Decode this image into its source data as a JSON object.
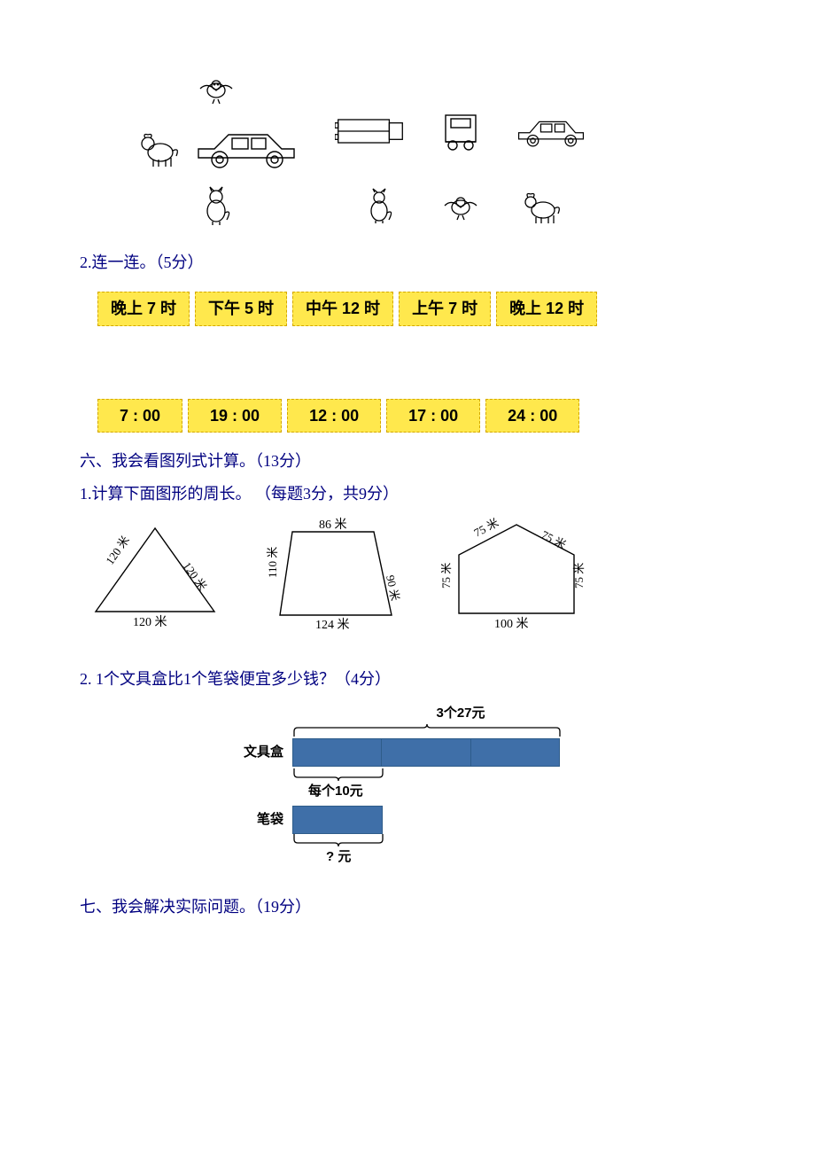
{
  "illus": {
    "icons": {
      "bird": "bird-icon",
      "dog": "dog-icon",
      "car_side": "car-side-icon",
      "cat": "cat-icon",
      "truck_top": "truck-top-icon",
      "truck_back": "truck-back-icon",
      "car_side2": "car-side-icon"
    }
  },
  "q2": {
    "label": "2.连一连。（5分）"
  },
  "times_top": [
    "晚上 7 时",
    "下午 5 时",
    "中午 12 时",
    "上午 7 时",
    "晚上 12 时"
  ],
  "times_bot": [
    "7 : 00",
    "19 : 00",
    "12 : 00",
    "17 : 00",
    "24 : 00"
  ],
  "sec6": {
    "heading": "六、我会看图列式计算。（13分）",
    "sub1": "1.计算下面图形的周长。 （每题3分，共9分）",
    "shape1": {
      "a": "120 米",
      "b": "120 米",
      "c": "120 米"
    },
    "shape2": {
      "top": "86 米",
      "left": "110 米",
      "right": "90 米",
      "bottom": "124 米"
    },
    "shape3": {
      "tl": "75 米",
      "tr": "75 米",
      "l": "75 米",
      "r": "75 米",
      "b": "100 米"
    },
    "sub2": "2.  1个文具盒比1个笔袋便宜多少钱？（4分）"
  },
  "bar": {
    "top_anno": "3个27元",
    "row1_label": "文具盒",
    "row1_color": "#3f6fa8",
    "row1_width": 300,
    "row1_segments": 3,
    "mid_anno": "每个10元",
    "row2_label": "笔袋",
    "row2_color": "#3f6fa8",
    "row2_width": 100,
    "bottom_anno": "? 元"
  },
  "sec7": {
    "heading": "七、我会解决实际问题。（19分）"
  }
}
